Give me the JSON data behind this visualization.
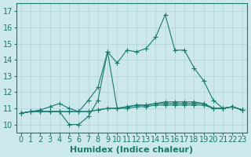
{
  "xlabel": "Humidex (Indice chaleur)",
  "background_color": "#cce8ec",
  "grid_color": "#b0d0d8",
  "line_color": "#1a7a6e",
  "xlim": [
    -0.5,
    23.5
  ],
  "ylim": [
    9.5,
    17.5
  ],
  "yticks": [
    10,
    11,
    12,
    13,
    14,
    15,
    16,
    17
  ],
  "xticks": [
    0,
    1,
    2,
    3,
    4,
    5,
    6,
    7,
    8,
    9,
    10,
    11,
    12,
    13,
    14,
    15,
    16,
    17,
    18,
    19,
    20,
    21,
    22,
    23
  ],
  "xtick_labels": [
    "0",
    "1",
    "2",
    "3",
    "4",
    "5",
    "6",
    "7",
    "8",
    "9",
    "10",
    "11",
    "12",
    "13",
    "14",
    "15",
    "16",
    "17",
    "18",
    "19",
    "20",
    "21",
    "22",
    "23"
  ],
  "series": [
    [
      10.7,
      10.8,
      10.9,
      11.1,
      11.3,
      11.0,
      10.8,
      11.5,
      12.3,
      14.5,
      13.8,
      14.6,
      14.5,
      14.7,
      15.4,
      16.8,
      14.6,
      14.6,
      13.5,
      12.7,
      11.5,
      11.0,
      11.1,
      10.9
    ],
    [
      10.7,
      10.8,
      10.8,
      10.8,
      10.8,
      10.0,
      10.0,
      10.5,
      11.5,
      14.5,
      11.0,
      11.1,
      11.2,
      11.2,
      11.3,
      11.4,
      11.4,
      11.4,
      11.4,
      11.3,
      11.0,
      11.0,
      11.1,
      10.9
    ],
    [
      10.7,
      10.8,
      10.8,
      10.8,
      10.8,
      10.8,
      10.8,
      10.8,
      10.9,
      11.0,
      11.0,
      11.1,
      11.2,
      11.2,
      11.3,
      11.3,
      11.3,
      11.3,
      11.3,
      11.3,
      11.0,
      11.0,
      11.1,
      10.9
    ],
    [
      10.7,
      10.8,
      10.8,
      10.8,
      10.8,
      10.8,
      10.8,
      10.8,
      10.9,
      11.0,
      11.0,
      11.0,
      11.1,
      11.1,
      11.2,
      11.2,
      11.2,
      11.2,
      11.2,
      11.2,
      11.0,
      11.0,
      11.1,
      10.9
    ]
  ],
  "marker": "+",
  "markersize": 4,
  "linewidth": 0.8,
  "font_size": 7
}
